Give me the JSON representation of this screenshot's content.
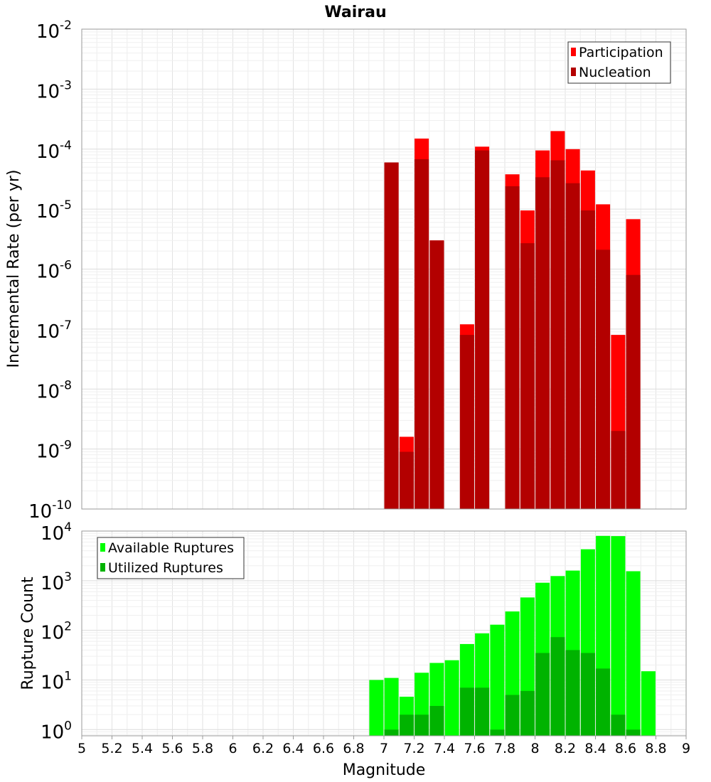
{
  "chart_data": [
    {
      "type": "bar",
      "panel": "top",
      "title": "Wairau",
      "xlabel": "",
      "ylabel": "Incremental Rate (per yr)",
      "xlim": [
        5,
        9
      ],
      "ylim": [
        1e-10,
        0.01
      ],
      "yscale": "log",
      "grid": true,
      "legend_position": "top-right",
      "y_tick_labels": [
        {
          "base": "10",
          "exp": "-10"
        },
        {
          "base": "10",
          "exp": "-9"
        },
        {
          "base": "10",
          "exp": "-8"
        },
        {
          "base": "10",
          "exp": "-7"
        },
        {
          "base": "10",
          "exp": "-6"
        },
        {
          "base": "10",
          "exp": "-5"
        },
        {
          "base": "10",
          "exp": "-4"
        },
        {
          "base": "10",
          "exp": "-3"
        },
        {
          "base": "10",
          "exp": "-2"
        }
      ],
      "categories": [
        7.05,
        7.15,
        7.25,
        7.35,
        7.55,
        7.65,
        7.85,
        7.95,
        8.05,
        8.15,
        8.25,
        8.35,
        8.45,
        8.55,
        8.65
      ],
      "series": [
        {
          "name": "Participation",
          "color": "#ff0000",
          "values": [
            6e-05,
            1.6e-09,
            0.00015,
            3e-06,
            1.2e-07,
            0.00011,
            3.8e-05,
            9.5e-06,
            9.5e-05,
            0.0002,
            0.0001,
            4.4e-05,
            1.2e-05,
            8e-08,
            6.8e-06
          ]
        },
        {
          "name": "Nucleation",
          "color": "#b30000",
          "values": [
            6e-05,
            9e-10,
            6.8e-05,
            3e-06,
            8e-08,
            9.5e-05,
            2.4e-05,
            2.7e-06,
            3.4e-05,
            6.5e-05,
            2.7e-05,
            9.5e-06,
            2.1e-06,
            2e-09,
            8e-07
          ]
        }
      ]
    },
    {
      "type": "bar",
      "panel": "bottom",
      "title": "",
      "xlabel": "Magnitude",
      "ylabel": "Rupture Count",
      "xlim": [
        5,
        9
      ],
      "ylim": [
        0.75,
        10000
      ],
      "yscale": "log",
      "grid": true,
      "legend_position": "top-left",
      "x_ticks": [
        "5",
        "5.2",
        "5.4",
        "5.6",
        "5.8",
        "6",
        "6.2",
        "6.4",
        "6.6",
        "6.8",
        "7",
        "7.2",
        "7.4",
        "7.6",
        "7.8",
        "8",
        "8.2",
        "8.4",
        "8.6",
        "8.8",
        "9"
      ],
      "y_tick_labels": [
        {
          "base": "10",
          "exp": "0"
        },
        {
          "base": "10",
          "exp": "1"
        },
        {
          "base": "10",
          "exp": "2"
        },
        {
          "base": "10",
          "exp": "3"
        },
        {
          "base": "10",
          "exp": "4"
        }
      ],
      "categories": [
        6.95,
        7.05,
        7.15,
        7.25,
        7.35,
        7.45,
        7.55,
        7.65,
        7.75,
        7.85,
        7.95,
        8.05,
        8.15,
        8.25,
        8.35,
        8.45,
        8.55,
        8.65,
        8.75
      ],
      "series": [
        {
          "name": "Available Ruptures",
          "color": "#00ff00",
          "values": [
            10,
            11,
            4.6,
            14,
            22,
            25,
            53,
            87,
            130,
            240,
            460,
            910,
            1240,
            1600,
            4300,
            8000,
            7900,
            1550,
            15
          ]
        },
        {
          "name": "Utilized Ruptures",
          "color": "#00b300",
          "values": [
            null,
            1,
            2,
            2,
            3,
            null,
            7,
            7,
            1,
            5,
            6,
            35,
            73,
            40,
            35,
            17,
            2,
            1,
            null
          ]
        }
      ]
    }
  ]
}
